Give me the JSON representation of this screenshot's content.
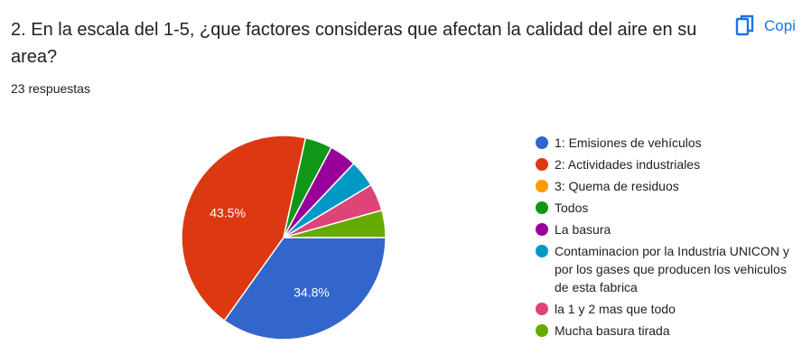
{
  "header": {
    "title": "2. En la escala del 1-5, ¿que factores consideras que afectan la calidad del aire en su area?",
    "responses": "23 respuestas",
    "copy_label": "Copi"
  },
  "chart_data": {
    "type": "pie",
    "slices": [
      {
        "label": "1: Emisiones de vehículos",
        "value": 34.8,
        "color": "#3366cc",
        "data_label": "34.8%"
      },
      {
        "label": "2: Actividades industriales",
        "value": 43.5,
        "color": "#dc3912",
        "data_label": "43.5%"
      },
      {
        "label": "3: Quema de residuos",
        "value": 0,
        "color": "#ff9900",
        "data_label": ""
      },
      {
        "label": "Todos",
        "value": 4.3,
        "color": "#109618",
        "data_label": ""
      },
      {
        "label": "La basura",
        "value": 4.3,
        "color": "#990099",
        "data_label": ""
      },
      {
        "label": "Contaminacion por la Industria UNICON y por los gases que producen los vehiculos de esta fabrica",
        "value": 4.3,
        "color": "#0099c6",
        "data_label": ""
      },
      {
        "label": "la 1 y 2 mas que todo",
        "value": 4.3,
        "color": "#dd4477",
        "data_label": ""
      },
      {
        "label": "Mucha basura tirada",
        "value": 4.3,
        "color": "#66aa00",
        "data_label": ""
      }
    ],
    "legend_position": "right"
  }
}
